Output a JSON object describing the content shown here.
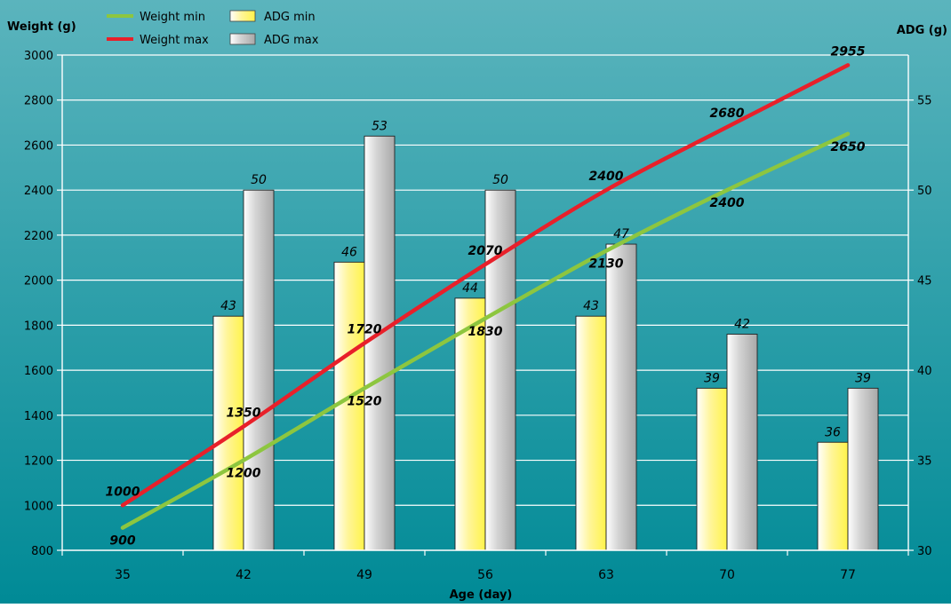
{
  "colors": {
    "bg_top": "#5bb4bd",
    "bg_bottom": "#008a96",
    "weight_min": "#8dc63f",
    "weight_max": "#e8202a",
    "adg_min_fill": "#fff34a",
    "adg_max_fill": "#a8a8a8",
    "grid": "#ffffff"
  },
  "chart_data": {
    "type": "bar",
    "xlabel": "Age (day)",
    "ylabel_left": "Weight (g)",
    "ylabel_right": "ADG (g)",
    "categories": [
      "35",
      "42",
      "49",
      "56",
      "63",
      "70",
      "77"
    ],
    "y_left": {
      "min": 800,
      "max": 3000,
      "ticks": [
        800,
        1000,
        1200,
        1400,
        1600,
        1800,
        2000,
        2200,
        2400,
        2600,
        2800,
        3000
      ]
    },
    "y_right": {
      "min": 30,
      "max": 57.5,
      "ticks": [
        30,
        35,
        40,
        45,
        50,
        55
      ]
    },
    "grid": true,
    "legend_position": "top-left",
    "series": [
      {
        "name": "Weight min",
        "type": "line",
        "axis": "left",
        "values": [
          900,
          1200,
          1520,
          1830,
          2130,
          2400,
          2650
        ]
      },
      {
        "name": "Weight max",
        "type": "line",
        "axis": "left",
        "values": [
          1000,
          1350,
          1720,
          2070,
          2400,
          2680,
          2955
        ]
      },
      {
        "name": "ADG min",
        "type": "bar",
        "axis": "right",
        "values": [
          null,
          43,
          46,
          44,
          43,
          39,
          36
        ]
      },
      {
        "name": "ADG max",
        "type": "bar",
        "axis": "right",
        "values": [
          null,
          50,
          53,
          50,
          47,
          42,
          39
        ]
      }
    ]
  }
}
